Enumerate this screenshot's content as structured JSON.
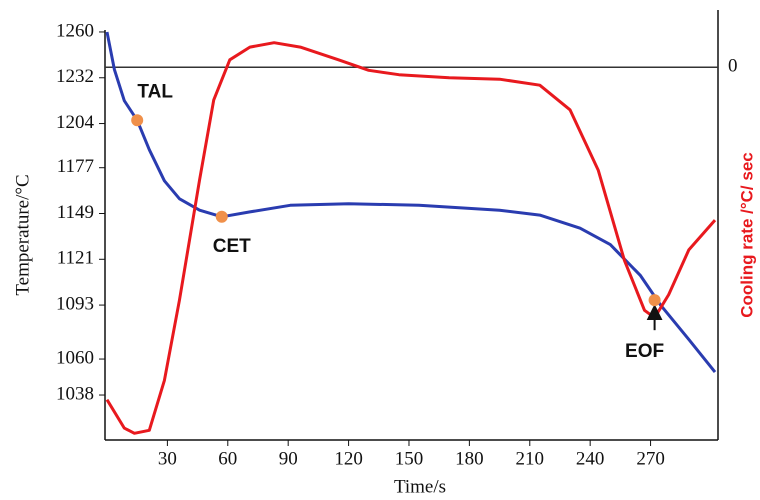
{
  "chart_data": {
    "type": "line",
    "x_label": "Time/s",
    "y_label": "Temperature/°C",
    "y2_label": "Cooling rate /°C/ sec",
    "xlim": [
      0,
      303
    ],
    "xticks": [
      30,
      60,
      90,
      120,
      150,
      180,
      210,
      240,
      270
    ],
    "ylim": [
      1010.5,
      1261.2
    ],
    "yticks": [
      1260,
      1232,
      1204,
      1177,
      1149,
      1121,
      1093,
      1060,
      1038
    ],
    "y2lim": [
      -5,
      0.5
    ],
    "y2ticks": [
      0
    ],
    "y2_color": "#e8191e",
    "series": [
      {
        "name": "Temperature",
        "color": "#2a3cb0",
        "x": [
          0,
          3.7,
          8.6,
          15,
          21,
          28.5,
          36,
          46,
          57,
          71,
          91,
          120,
          155,
          195,
          215,
          235,
          250,
          265,
          275,
          289,
          302
        ],
        "values": [
          1260,
          1237,
          1218,
          1206,
          1188,
          1169,
          1158,
          1151,
          1147,
          1150,
          1154,
          1155,
          1154,
          1151,
          1148,
          1140,
          1130,
          1111,
          1093,
          1072,
          1052
        ]
      },
      {
        "name": "Cooling rate",
        "color": "#e8191e",
        "axis": "y2",
        "x": [
          0,
          8.6,
          13.6,
          21,
          28.5,
          36,
          46,
          53,
          61,
          71,
          83,
          96,
          115,
          130,
          145,
          170,
          195,
          215,
          230,
          244,
          257,
          267,
          272,
          279,
          289,
          302
        ],
        "values": [
          -4.46,
          -4.84,
          -4.91,
          -4.87,
          -4.2,
          -3.12,
          -1.51,
          -0.44,
          0.1,
          0.27,
          0.33,
          0.27,
          0.1,
          -0.04,
          -0.1,
          -0.14,
          -0.16,
          -0.24,
          -0.57,
          -1.38,
          -2.59,
          -3.26,
          -3.36,
          -3.05,
          -2.45,
          -2.05
        ]
      }
    ],
    "annotations": [
      {
        "label": "TAL",
        "x": 15,
        "y": 1206,
        "color": "#f0904a"
      },
      {
        "label": "CET",
        "x": 57,
        "y": 1147,
        "color": "#f0904a"
      },
      {
        "label": "EOF",
        "x": 272,
        "y": 1096,
        "color": "#f0904a"
      }
    ]
  }
}
